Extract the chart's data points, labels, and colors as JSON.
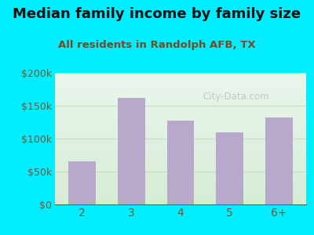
{
  "title": "Median family income by family size",
  "subtitle": "All residents in Randolph AFB, TX",
  "categories": [
    "2",
    "3",
    "4",
    "5",
    "6+"
  ],
  "values": [
    65000,
    162000,
    127000,
    110000,
    132000
  ],
  "bar_color": "#b8a9cc",
  "ylim": [
    0,
    200000
  ],
  "yticks": [
    0,
    50000,
    100000,
    150000,
    200000
  ],
  "ytick_labels": [
    "$0",
    "$50k",
    "$100k",
    "$150k",
    "$200k"
  ],
  "background_outer": "#00eeff",
  "plot_area_color_top": "#eaf5ec",
  "plot_area_color_bottom": "#d5ecd5",
  "title_color": "#111111",
  "subtitle_color": "#7a4a1e",
  "tick_label_color": "#7a5533",
  "grid_color": "#c5ddc5",
  "watermark": "City-Data.com",
  "title_fontsize": 13,
  "subtitle_fontsize": 9.5
}
